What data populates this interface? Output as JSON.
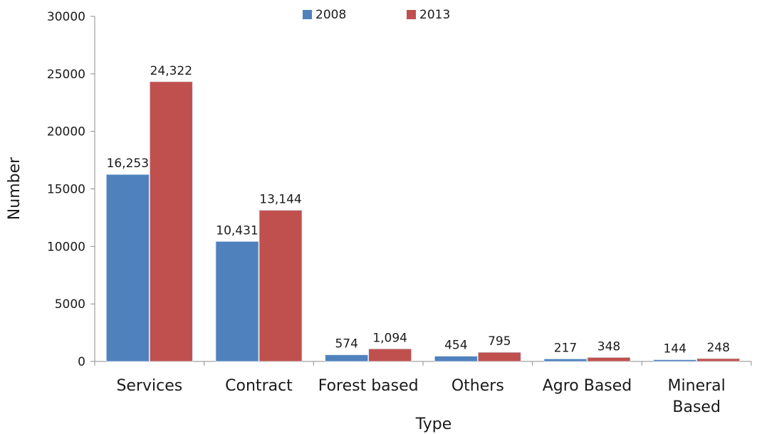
{
  "chart_data": {
    "type": "bar",
    "title": "",
    "xlabel": "Type",
    "ylabel": "Number",
    "categories": [
      "Services",
      "Contract",
      "Forest based",
      "Others",
      "Agro Based",
      "Mineral Based"
    ],
    "series": [
      {
        "name": "2008",
        "color": "#4f81bd",
        "values": [
          16253,
          10431,
          574,
          454,
          217,
          144
        ],
        "labels": [
          "16,253",
          "10,431",
          "574",
          "454",
          "217",
          "144"
        ]
      },
      {
        "name": "2013",
        "color": "#c0504d",
        "values": [
          24322,
          13144,
          1094,
          795,
          348,
          248
        ],
        "labels": [
          "24,322",
          "13,144",
          "1,094",
          "795",
          "348",
          "248"
        ]
      }
    ],
    "ylim": [
      0,
      30000
    ],
    "yticks": [
      "0",
      "5000",
      "10000",
      "15000",
      "20000",
      "25000",
      "30000"
    ],
    "legend_position": "top",
    "grid": false
  }
}
